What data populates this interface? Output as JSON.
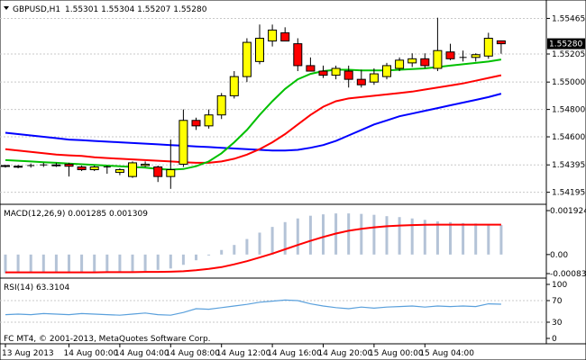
{
  "chart_data": {
    "type": "candlestick",
    "symbol_header": "GBPUSD,H1",
    "ohlc_header": [
      "1.55301",
      "1.55304",
      "1.55207",
      "1.55280"
    ],
    "copyright": "FC MT4, © 2001-2013, MetaQuotes Software Corp.",
    "price_ticks": [
      "1.55465",
      "1.55205",
      "1.55000",
      "1.54800",
      "1.54600",
      "1.54395",
      "1.54195"
    ],
    "price_ylim": [
      1.5414,
      1.5556
    ],
    "current_price": "1.55280",
    "colors": {
      "bull": "#ffff00",
      "bear": "#ff0000",
      "wick": "#000000",
      "ma_fast": "#00c000",
      "ma_mid": "#ff0000",
      "ma_slow": "#0000ff",
      "macd_hist": "#b4c3d7",
      "macd_signal": "#ff0000",
      "rsi": "#5aa0dc",
      "price_box": "#000000"
    },
    "candles": [
      {
        "o": 1.54385,
        "h": 1.54395,
        "l": 1.54375,
        "c": 1.5439
      },
      {
        "o": 1.54385,
        "h": 1.54395,
        "l": 1.5437,
        "c": 1.5438
      },
      {
        "o": 1.5439,
        "h": 1.54405,
        "l": 1.54375,
        "c": 1.5439
      },
      {
        "o": 1.54395,
        "h": 1.5441,
        "l": 1.5438,
        "c": 1.54395
      },
      {
        "o": 1.5439,
        "h": 1.5441,
        "l": 1.5438,
        "c": 1.54395
      },
      {
        "o": 1.544,
        "h": 1.5441,
        "l": 1.5431,
        "c": 1.54385
      },
      {
        "o": 1.5438,
        "h": 1.5439,
        "l": 1.5435,
        "c": 1.5436
      },
      {
        "o": 1.5436,
        "h": 1.5439,
        "l": 1.5435,
        "c": 1.5438
      },
      {
        "o": 1.5438,
        "h": 1.5439,
        "l": 1.5433,
        "c": 1.5438
      },
      {
        "o": 1.5434,
        "h": 1.5437,
        "l": 1.5432,
        "c": 1.5436
      },
      {
        "o": 1.5431,
        "h": 1.5442,
        "l": 1.543,
        "c": 1.5441
      },
      {
        "o": 1.5439,
        "h": 1.5442,
        "l": 1.5438,
        "c": 1.544
      },
      {
        "o": 1.5438,
        "h": 1.5439,
        "l": 1.5427,
        "c": 1.5431
      },
      {
        "o": 1.5431,
        "h": 1.5458,
        "l": 1.5422,
        "c": 1.5436
      },
      {
        "o": 1.544,
        "h": 1.548,
        "l": 1.5438,
        "c": 1.5472
      },
      {
        "o": 1.5472,
        "h": 1.5474,
        "l": 1.5465,
        "c": 1.5468
      },
      {
        "o": 1.5468,
        "h": 1.548,
        "l": 1.5466,
        "c": 1.5476
      },
      {
        "o": 1.5476,
        "h": 1.5492,
        "l": 1.5473,
        "c": 1.549
      },
      {
        "o": 1.549,
        "h": 1.5508,
        "l": 1.5488,
        "c": 1.5504
      },
      {
        "o": 1.5504,
        "h": 1.5532,
        "l": 1.55,
        "c": 1.5529
      },
      {
        "o": 1.5515,
        "h": 1.5542,
        "l": 1.5513,
        "c": 1.5532
      },
      {
        "o": 1.553,
        "h": 1.5542,
        "l": 1.5526,
        "c": 1.5538
      },
      {
        "o": 1.5536,
        "h": 1.554,
        "l": 1.553,
        "c": 1.553
      },
      {
        "o": 1.5528,
        "h": 1.5532,
        "l": 1.5508,
        "c": 1.5512
      },
      {
        "o": 1.5512,
        "h": 1.5518,
        "l": 1.5508,
        "c": 1.5508
      },
      {
        "o": 1.5508,
        "h": 1.5512,
        "l": 1.5503,
        "c": 1.5505
      },
      {
        "o": 1.5505,
        "h": 1.5512,
        "l": 1.5502,
        "c": 1.551
      },
      {
        "o": 1.5508,
        "h": 1.5512,
        "l": 1.5496,
        "c": 1.5502
      },
      {
        "o": 1.5502,
        "h": 1.5509,
        "l": 1.5496,
        "c": 1.5498
      },
      {
        "o": 1.55,
        "h": 1.551,
        "l": 1.5498,
        "c": 1.5506
      },
      {
        "o": 1.5504,
        "h": 1.5514,
        "l": 1.5502,
        "c": 1.5512
      },
      {
        "o": 1.551,
        "h": 1.5518,
        "l": 1.5508,
        "c": 1.5516
      },
      {
        "o": 1.5514,
        "h": 1.5521,
        "l": 1.5511,
        "c": 1.5517
      },
      {
        "o": 1.5517,
        "h": 1.5521,
        "l": 1.551,
        "c": 1.5512
      },
      {
        "o": 1.551,
        "h": 1.5547,
        "l": 1.5508,
        "c": 1.5523
      },
      {
        "o": 1.5522,
        "h": 1.5528,
        "l": 1.5516,
        "c": 1.5517
      },
      {
        "o": 1.5518,
        "h": 1.5523,
        "l": 1.5515,
        "c": 1.5518
      },
      {
        "o": 1.5518,
        "h": 1.5521,
        "l": 1.5515,
        "c": 1.552
      },
      {
        "o": 1.5519,
        "h": 1.5536,
        "l": 1.5517,
        "c": 1.5532
      },
      {
        "o": 1.55301,
        "h": 1.55304,
        "l": 1.55207,
        "c": 1.5528
      }
    ],
    "ma_fast": [
      1.5443,
      1.54425,
      1.5442,
      1.54415,
      1.5441,
      1.54405,
      1.544,
      1.54395,
      1.5439,
      1.54385,
      1.5438,
      1.54375,
      1.54365,
      1.5436,
      1.54365,
      1.54385,
      1.5442,
      1.5448,
      1.5456,
      1.5465,
      1.5476,
      1.5486,
      1.5495,
      1.5502,
      1.5506,
      1.5508,
      1.5509,
      1.5509,
      1.55085,
      1.55085,
      1.55085,
      1.5509,
      1.55095,
      1.551,
      1.5511,
      1.5512,
      1.5513,
      1.5514,
      1.5515,
      1.55165
    ],
    "ma_mid": [
      1.5451,
      1.545,
      1.5449,
      1.5448,
      1.5447,
      1.54465,
      1.5446,
      1.5445,
      1.54445,
      1.5444,
      1.54435,
      1.5443,
      1.54425,
      1.5442,
      1.54415,
      1.5441,
      1.5441,
      1.5442,
      1.5444,
      1.5447,
      1.5451,
      1.5456,
      1.5462,
      1.5469,
      1.5476,
      1.5482,
      1.5486,
      1.5488,
      1.5489,
      1.549,
      1.5491,
      1.5492,
      1.5493,
      1.54945,
      1.5496,
      1.54975,
      1.5499,
      1.5501,
      1.5503,
      1.5505
    ],
    "ma_slow": [
      1.5463,
      1.5462,
      1.5461,
      1.546,
      1.5459,
      1.5458,
      1.54575,
      1.5457,
      1.54565,
      1.5456,
      1.54555,
      1.5455,
      1.54545,
      1.5454,
      1.54535,
      1.5453,
      1.54525,
      1.5452,
      1.54515,
      1.5451,
      1.54505,
      1.545,
      1.545,
      1.54505,
      1.5452,
      1.5454,
      1.5457,
      1.5461,
      1.5465,
      1.5469,
      1.5472,
      1.5475,
      1.5477,
      1.5479,
      1.5481,
      1.5483,
      1.5485,
      1.5487,
      1.5489,
      1.54915
    ],
    "macd": {
      "label": "MACD(12,26,9) 0.001285 0.001309",
      "ticks": [
        "0.001924",
        "0.00",
        "-0.000834"
      ],
      "ylim": [
        -0.000834,
        0.001924
      ],
      "hist": [
        -0.00082,
        -0.00081,
        -0.0008,
        -0.00079,
        -0.00079,
        -0.00078,
        -0.00078,
        -0.00077,
        -0.00076,
        -0.00076,
        -0.00075,
        -0.00072,
        -0.00067,
        -0.00061,
        -0.00045,
        -0.00025,
        -2e-05,
        0.0002,
        0.00042,
        0.00068,
        0.00096,
        0.00121,
        0.00142,
        0.00158,
        0.0017,
        0.00176,
        0.0018,
        0.0018,
        0.00178,
        0.00174,
        0.00168,
        0.00164,
        0.00158,
        0.00152,
        0.00145,
        0.00142,
        0.00138,
        0.00136,
        0.00132,
        0.00129
      ],
      "signal": [
        -0.00078,
        -0.00078,
        -0.00078,
        -0.00078,
        -0.00078,
        -0.00078,
        -0.00078,
        -0.00078,
        -0.00077,
        -0.00077,
        -0.00077,
        -0.00076,
        -0.00076,
        -0.00075,
        -0.00073,
        -0.00069,
        -0.00063,
        -0.00055,
        -0.00043,
        -0.00029,
        -0.00013,
        4e-05,
        0.00023,
        0.00042,
        0.0006,
        0.00077,
        0.00092,
        0.00104,
        0.00113,
        0.00119,
        0.00124,
        0.00127,
        0.00129,
        0.0013,
        0.00131,
        0.00131,
        0.00131,
        0.00131,
        0.00131,
        0.00131
      ]
    },
    "rsi": {
      "label": "RSI(14) 63.3104",
      "ticks": [
        "100",
        "70",
        "30",
        "0"
      ],
      "levels": [
        70,
        30
      ],
      "ylim": [
        0,
        100
      ],
      "values": [
        44,
        45,
        44,
        46,
        45,
        44,
        46,
        45,
        44,
        43,
        45,
        47,
        44,
        43,
        48,
        55,
        54,
        57,
        60,
        63,
        67,
        69,
        71,
        70,
        64,
        60,
        57,
        55,
        58,
        56,
        58,
        59,
        60,
        58,
        60,
        59,
        60,
        59,
        64,
        63.31
      ]
    },
    "x_ticks": [
      {
        "label": "13 Aug 2013",
        "i": 0
      },
      {
        "label": "14 Aug 00:00",
        "i": 5
      },
      {
        "label": "14 Aug 04:00",
        "i": 9
      },
      {
        "label": "14 Aug 08:00",
        "i": 13
      },
      {
        "label": "14 Aug 12:00",
        "i": 17
      },
      {
        "label": "14 Aug 16:00",
        "i": 21
      },
      {
        "label": "14 Aug 20:00",
        "i": 25
      },
      {
        "label": "15 Aug 00:00",
        "i": 29
      },
      {
        "label": "15 Aug 04:00",
        "i": 33
      }
    ]
  }
}
